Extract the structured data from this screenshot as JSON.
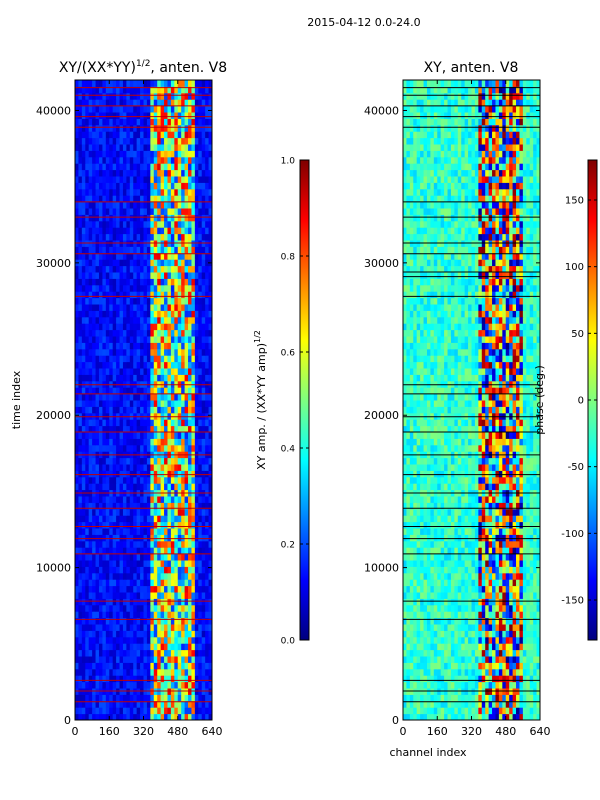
{
  "figure_title": "2015-04-12 0.0-24.0",
  "colors": {
    "jet": [
      "#00007f",
      "#0000ff",
      "#007fff",
      "#00ffff",
      "#7fff7f",
      "#ffff00",
      "#ff7f00",
      "#ff0000",
      "#7f0000"
    ],
    "flag_line": "#c00000",
    "gap_line": "#000000",
    "axis": "#000000"
  },
  "chart_data": [
    {
      "type": "heatmap",
      "title_main": "XY/(XX*YY)",
      "title_sup": "1/2",
      "title_tail": ", anten. V8",
      "xlabel": "",
      "ylabel": "time index",
      "xlim": [
        0,
        640
      ],
      "ylim": [
        0,
        42000
      ],
      "xticks": [
        0,
        160,
        320,
        480,
        640
      ],
      "yticks": [
        0,
        10000,
        20000,
        30000,
        40000
      ],
      "active_channel_band": [
        360,
        560
      ],
      "flagged_time_rows": [
        1200,
        1900,
        2600,
        6600,
        7800,
        10900,
        11900,
        12700,
        13900,
        14900,
        16100,
        17400,
        18900,
        19900,
        21400,
        22000,
        27800,
        30600,
        31300,
        33000,
        34000,
        38900,
        39600,
        40300,
        41000,
        41500
      ],
      "colorbar": {
        "label_main": "XY amp. / (XX*YY amp)",
        "label_sup": "1/2",
        "min": 0.0,
        "max": 1.0,
        "ticks": [
          "0.0",
          "0.2",
          "0.4",
          "0.6",
          "0.8",
          "1.0"
        ]
      }
    },
    {
      "type": "heatmap",
      "title": "XY, anten. V8",
      "xlabel": "channel index",
      "ylabel": "",
      "xlim": [
        0,
        640
      ],
      "ylim": [
        0,
        42000
      ],
      "xticks": [
        0,
        160,
        320,
        480,
        640
      ],
      "yticks": [
        0,
        10000,
        20000,
        30000,
        40000
      ],
      "active_channel_band": [
        360,
        560
      ],
      "flagged_time_rows": [
        1200,
        1900,
        2600,
        6600,
        7800,
        10900,
        11900,
        12700,
        13900,
        14900,
        16100,
        17400,
        18900,
        19900,
        21400,
        22000,
        27800,
        29100,
        29400,
        30600,
        31300,
        33000,
        34000,
        38900,
        39600,
        40300,
        41000,
        41500
      ],
      "colorbar": {
        "label": "phase (deg.)",
        "min": -180,
        "max": 180,
        "ticks": [
          "-150",
          "-100",
          "-50",
          "0",
          "50",
          "100",
          "150"
        ],
        "tick_values": [
          -150,
          -100,
          -50,
          0,
          50,
          100,
          150
        ]
      }
    }
  ]
}
